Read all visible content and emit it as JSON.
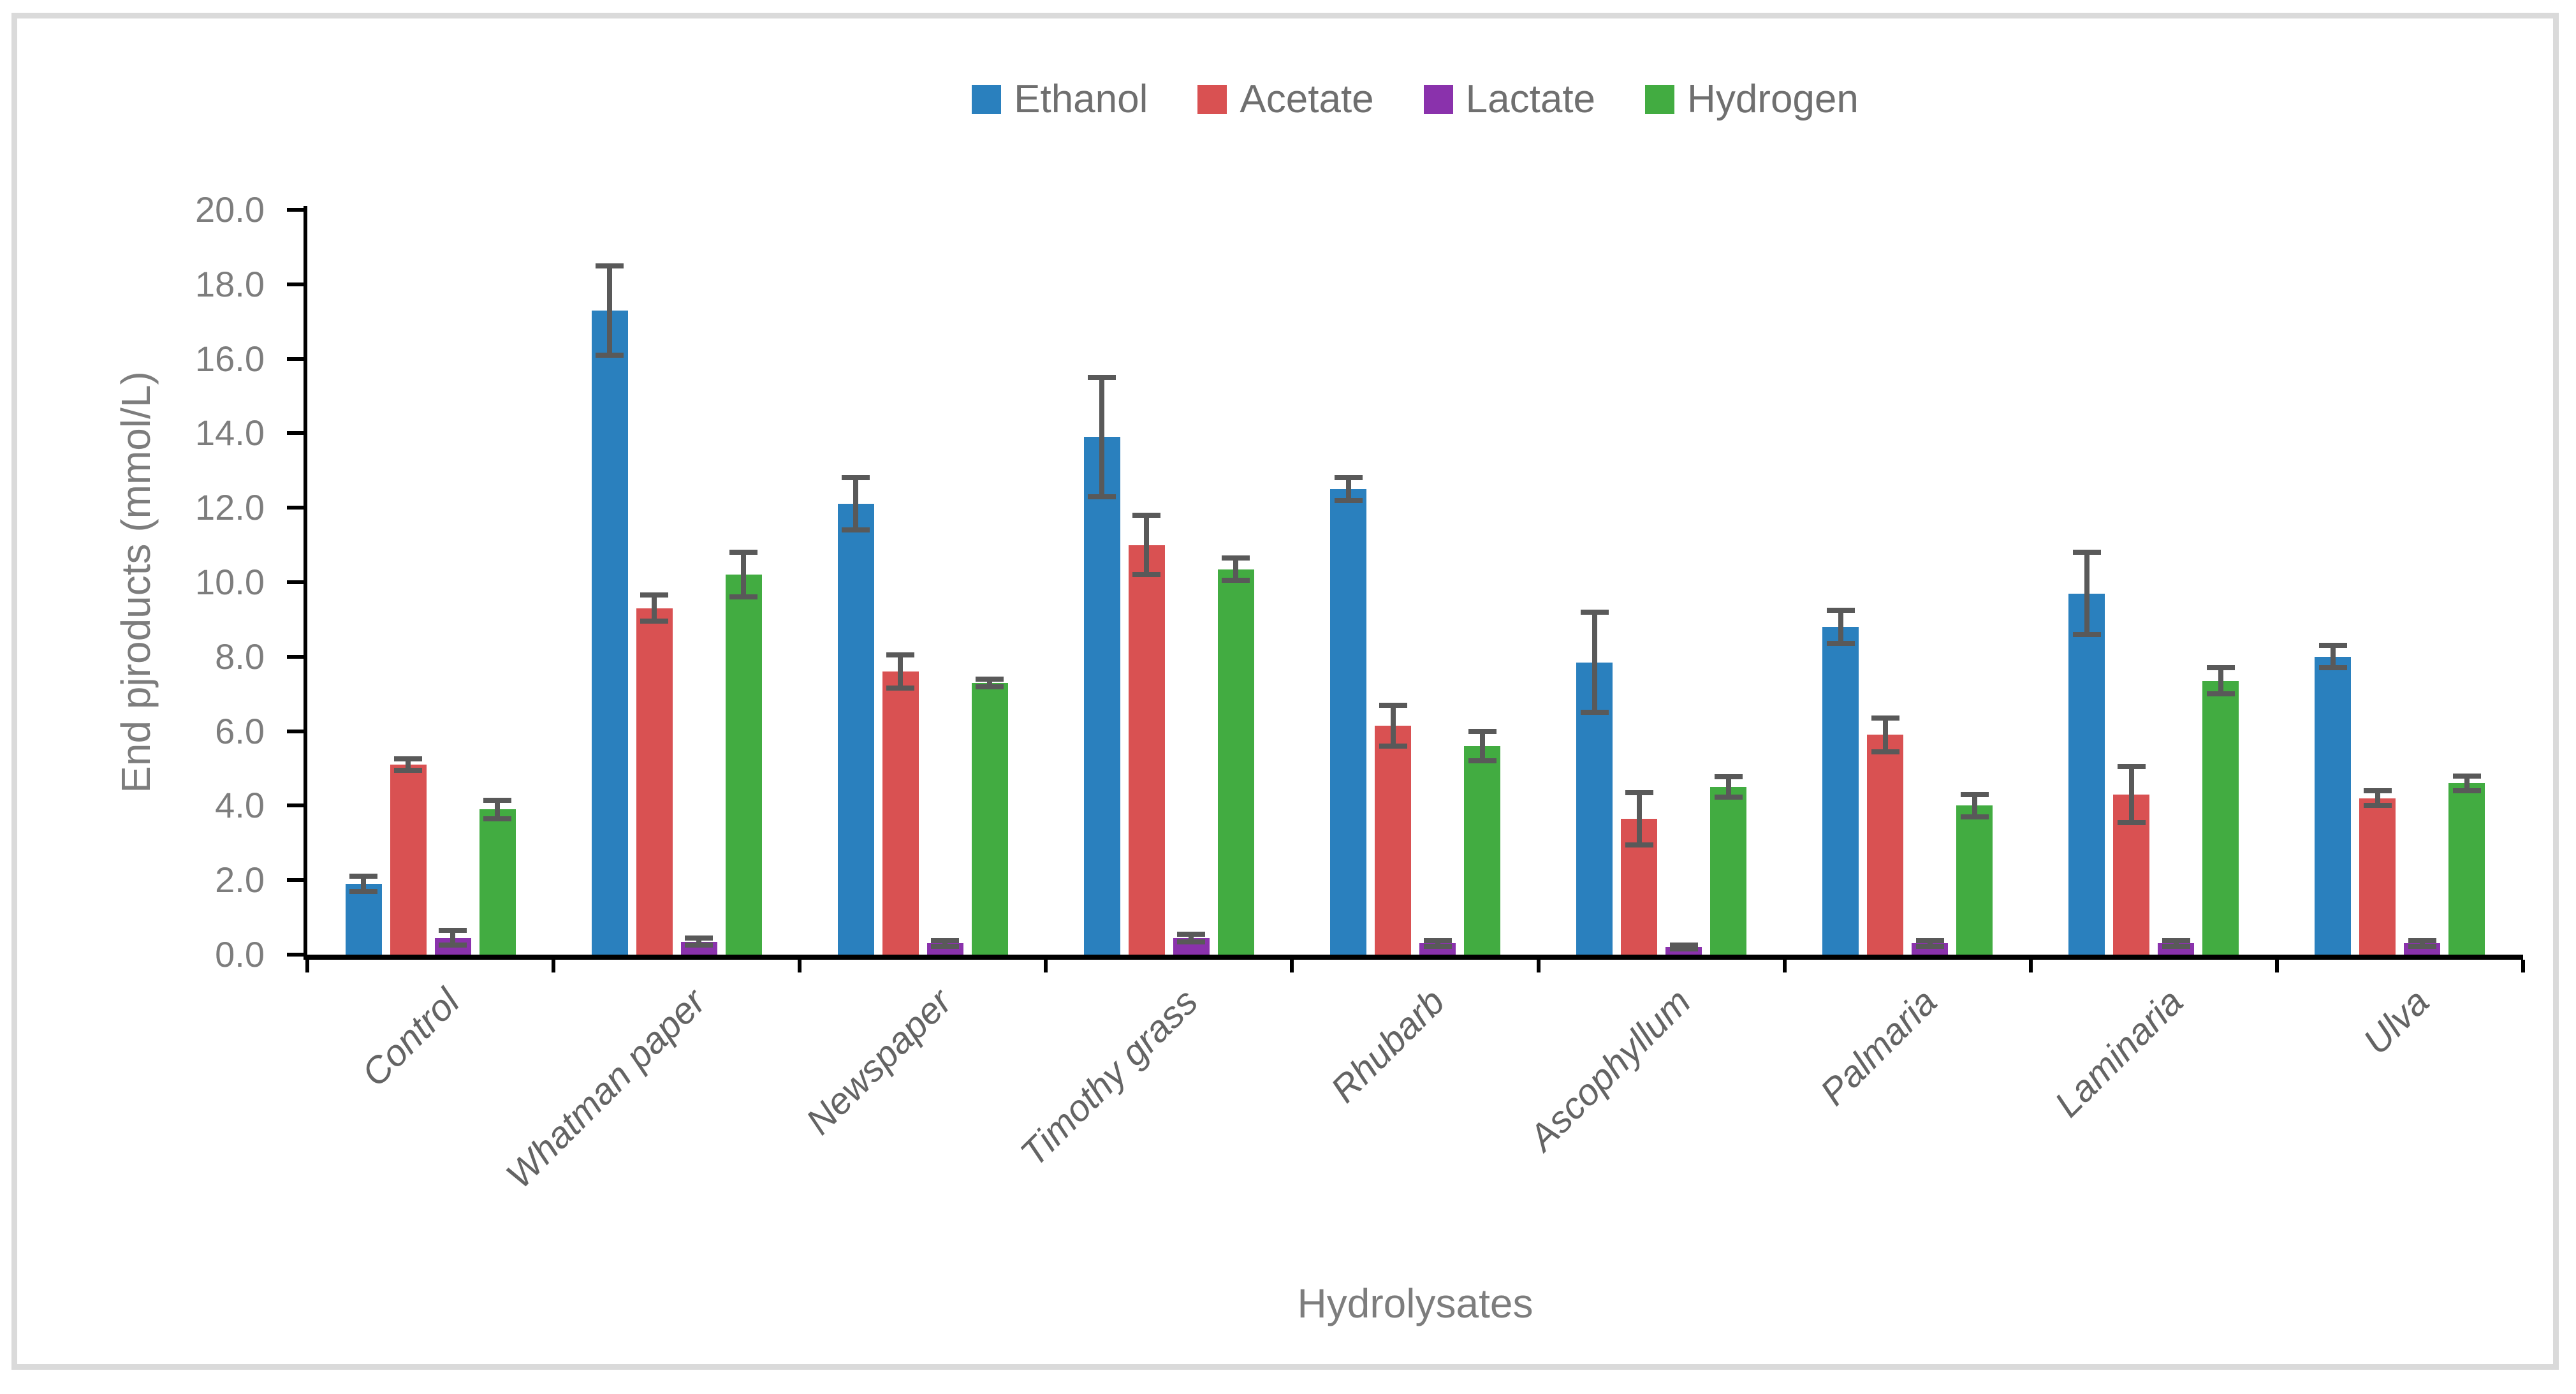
{
  "frame": {
    "background": "#ffffff",
    "border_color": "#dadada"
  },
  "styles": {
    "axis_color": "#000000",
    "error_bar_color": "#595959",
    "tick_label_color": "#7d7d7d",
    "axis_title_color": "#7d7d7d",
    "category_label_color": "#646464",
    "legend_text_color": "#6f6f6f"
  },
  "chart_data": {
    "type": "bar",
    "title": "",
    "xlabel": "Hydrolysates",
    "ylabel": "End pjroducts (mmol/L)",
    "ylim": [
      0,
      20
    ],
    "ytick_step": 2,
    "y_tick_labels": [
      "0.0",
      "2.0",
      "4.0",
      "6.0",
      "8.0",
      "10.0",
      "12.0",
      "14.0",
      "16.0",
      "18.0",
      "20.0"
    ],
    "grid": false,
    "legend_position": "top-center",
    "error_bars": true,
    "categories": [
      "Control",
      "Whatman paper",
      "Newspaper",
      "Timothy grass",
      "Rhubarb",
      "Ascophyllum",
      "Palmaria",
      "Laminaria",
      "Ulva"
    ],
    "series": [
      {
        "name": "Ethanol",
        "color": "#2a80be",
        "values": [
          1.9,
          17.3,
          12.1,
          13.9,
          12.5,
          7.85,
          8.8,
          9.7,
          8.0
        ],
        "errors": [
          0.2,
          1.2,
          0.7,
          1.6,
          0.3,
          1.35,
          0.45,
          1.1,
          0.3
        ]
      },
      {
        "name": "Acetate",
        "color": "#d95152",
        "values": [
          5.1,
          9.3,
          7.6,
          11.0,
          6.15,
          3.65,
          5.9,
          4.3,
          4.2
        ],
        "errors": [
          0.15,
          0.35,
          0.45,
          0.8,
          0.55,
          0.7,
          0.45,
          0.75,
          0.2
        ]
      },
      {
        "name": "Lactate",
        "color": "#8a32ac",
        "values": [
          0.45,
          0.35,
          0.3,
          0.45,
          0.3,
          0.2,
          0.3,
          0.3,
          0.3
        ],
        "errors": [
          0.2,
          0.1,
          0.08,
          0.1,
          0.08,
          0.05,
          0.08,
          0.08,
          0.08
        ]
      },
      {
        "name": "Hydrogen",
        "color": "#42ac41",
        "values": [
          3.9,
          10.2,
          7.3,
          10.35,
          5.6,
          4.5,
          4.0,
          7.35,
          4.6
        ],
        "errors": [
          0.25,
          0.6,
          0.1,
          0.3,
          0.4,
          0.27,
          0.3,
          0.35,
          0.2
        ]
      }
    ]
  }
}
